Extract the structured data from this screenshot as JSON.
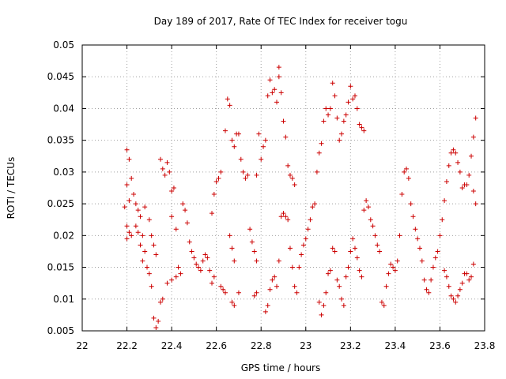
{
  "chart_data": {
    "type": "scatter",
    "title": "Day 189 of 2017, Rate Of TEC Index for receiver togu",
    "xlabel": "GPS time / hours",
    "ylabel": "ROTI / TECUs",
    "xlim": [
      22,
      23.8
    ],
    "ylim": [
      0.005,
      0.05
    ],
    "xticks": [
      "22",
      "22.2",
      "22.4",
      "22.6",
      "22.8",
      "23",
      "23.2",
      "23.4",
      "23.6",
      "23.8"
    ],
    "yticks": [
      "0.005",
      "0.01",
      "0.015",
      "0.02",
      "0.025",
      "0.03",
      "0.035",
      "0.04",
      "0.045",
      "0.05"
    ],
    "grid": true,
    "marker": "+",
    "marker_color": "#cc0000",
    "series": [
      {
        "points": [
          [
            22.2,
            0.0335
          ],
          [
            22.21,
            0.032
          ],
          [
            22.2,
            0.028
          ],
          [
            22.21,
            0.0255
          ],
          [
            22.19,
            0.0245
          ],
          [
            22.22,
            0.029
          ],
          [
            22.2,
            0.0215
          ],
          [
            22.21,
            0.0205
          ],
          [
            22.22,
            0.02
          ],
          [
            22.2,
            0.0195
          ],
          [
            22.23,
            0.0265
          ],
          [
            22.24,
            0.025
          ],
          [
            22.25,
            0.024
          ],
          [
            22.26,
            0.023
          ],
          [
            22.24,
            0.0215
          ],
          [
            22.25,
            0.0205
          ],
          [
            22.27,
            0.02
          ],
          [
            22.26,
            0.0185
          ],
          [
            22.28,
            0.0175
          ],
          [
            22.27,
            0.016
          ],
          [
            22.29,
            0.015
          ],
          [
            22.3,
            0.014
          ],
          [
            22.28,
            0.0245
          ],
          [
            22.3,
            0.0225
          ],
          [
            22.31,
            0.02
          ],
          [
            22.32,
            0.0185
          ],
          [
            22.33,
            0.017
          ],
          [
            22.31,
            0.012
          ],
          [
            22.32,
            0.007
          ],
          [
            22.33,
            0.0055
          ],
          [
            22.34,
            0.0065
          ],
          [
            22.35,
            0.0095
          ],
          [
            22.36,
            0.01
          ],
          [
            22.35,
            0.032
          ],
          [
            22.36,
            0.0305
          ],
          [
            22.37,
            0.0295
          ],
          [
            22.38,
            0.0315
          ],
          [
            22.39,
            0.03
          ],
          [
            22.4,
            0.027
          ],
          [
            22.41,
            0.0275
          ],
          [
            22.4,
            0.023
          ],
          [
            22.42,
            0.021
          ],
          [
            22.38,
            0.0125
          ],
          [
            22.4,
            0.013
          ],
          [
            22.42,
            0.0135
          ],
          [
            22.43,
            0.015
          ],
          [
            22.44,
            0.014
          ],
          [
            22.45,
            0.025
          ],
          [
            22.46,
            0.024
          ],
          [
            22.47,
            0.022
          ],
          [
            22.48,
            0.019
          ],
          [
            22.49,
            0.0175
          ],
          [
            22.5,
            0.0165
          ],
          [
            22.51,
            0.0155
          ],
          [
            22.52,
            0.015
          ],
          [
            22.53,
            0.0145
          ],
          [
            22.54,
            0.016
          ],
          [
            22.55,
            0.017
          ],
          [
            22.56,
            0.0165
          ],
          [
            22.57,
            0.0145
          ],
          [
            22.58,
            0.0125
          ],
          [
            22.59,
            0.0135
          ],
          [
            22.58,
            0.0235
          ],
          [
            22.59,
            0.0265
          ],
          [
            22.6,
            0.0285
          ],
          [
            22.61,
            0.029
          ],
          [
            22.62,
            0.03
          ],
          [
            22.62,
            0.012
          ],
          [
            22.63,
            0.0115
          ],
          [
            22.64,
            0.011
          ],
          [
            22.64,
            0.0365
          ],
          [
            22.65,
            0.0415
          ],
          [
            22.66,
            0.0405
          ],
          [
            22.67,
            0.035
          ],
          [
            22.68,
            0.034
          ],
          [
            22.69,
            0.036
          ],
          [
            22.7,
            0.036
          ],
          [
            22.66,
            0.02
          ],
          [
            22.67,
            0.018
          ],
          [
            22.68,
            0.016
          ],
          [
            22.67,
            0.0095
          ],
          [
            22.68,
            0.009
          ],
          [
            22.7,
            0.011
          ],
          [
            22.71,
            0.032
          ],
          [
            22.72,
            0.03
          ],
          [
            22.73,
            0.029
          ],
          [
            22.74,
            0.0295
          ],
          [
            22.75,
            0.021
          ],
          [
            22.76,
            0.019
          ],
          [
            22.77,
            0.0175
          ],
          [
            22.78,
            0.016
          ],
          [
            22.77,
            0.0105
          ],
          [
            22.78,
            0.011
          ],
          [
            22.78,
            0.0295
          ],
          [
            22.79,
            0.036
          ],
          [
            22.8,
            0.032
          ],
          [
            22.81,
            0.034
          ],
          [
            22.82,
            0.035
          ],
          [
            22.83,
            0.042
          ],
          [
            22.84,
            0.0445
          ],
          [
            22.85,
            0.0425
          ],
          [
            22.86,
            0.043
          ],
          [
            22.87,
            0.041
          ],
          [
            22.88,
            0.045
          ],
          [
            22.88,
            0.0465
          ],
          [
            22.89,
            0.0425
          ],
          [
            22.9,
            0.038
          ],
          [
            22.91,
            0.0355
          ],
          [
            22.92,
            0.031
          ],
          [
            22.93,
            0.0295
          ],
          [
            22.94,
            0.029
          ],
          [
            22.95,
            0.028
          ],
          [
            22.82,
            0.008
          ],
          [
            22.83,
            0.009
          ],
          [
            22.84,
            0.0115
          ],
          [
            22.85,
            0.013
          ],
          [
            22.86,
            0.0135
          ],
          [
            22.87,
            0.012
          ],
          [
            22.88,
            0.016
          ],
          [
            22.89,
            0.023
          ],
          [
            22.9,
            0.0235
          ],
          [
            22.91,
            0.023
          ],
          [
            22.92,
            0.0225
          ],
          [
            22.93,
            0.018
          ],
          [
            22.94,
            0.015
          ],
          [
            22.95,
            0.012
          ],
          [
            22.96,
            0.011
          ],
          [
            22.97,
            0.015
          ],
          [
            22.98,
            0.017
          ],
          [
            22.99,
            0.0185
          ],
          [
            23.0,
            0.0195
          ],
          [
            23.01,
            0.021
          ],
          [
            23.02,
            0.0225
          ],
          [
            23.03,
            0.0245
          ],
          [
            23.04,
            0.025
          ],
          [
            23.05,
            0.03
          ],
          [
            23.06,
            0.033
          ],
          [
            23.07,
            0.0345
          ],
          [
            23.08,
            0.038
          ],
          [
            23.09,
            0.04
          ],
          [
            23.1,
            0.039
          ],
          [
            23.11,
            0.04
          ],
          [
            23.12,
            0.044
          ],
          [
            23.13,
            0.042
          ],
          [
            23.14,
            0.0385
          ],
          [
            23.15,
            0.035
          ],
          [
            23.16,
            0.036
          ],
          [
            23.17,
            0.038
          ],
          [
            23.18,
            0.039
          ],
          [
            23.19,
            0.041
          ],
          [
            23.2,
            0.0435
          ],
          [
            23.21,
            0.0415
          ],
          [
            23.22,
            0.042
          ],
          [
            23.23,
            0.04
          ],
          [
            23.24,
            0.0375
          ],
          [
            23.25,
            0.037
          ],
          [
            23.26,
            0.0365
          ],
          [
            23.06,
            0.0095
          ],
          [
            23.07,
            0.0075
          ],
          [
            23.08,
            0.009
          ],
          [
            23.09,
            0.011
          ],
          [
            23.1,
            0.014
          ],
          [
            23.11,
            0.0145
          ],
          [
            23.12,
            0.018
          ],
          [
            23.13,
            0.0175
          ],
          [
            23.14,
            0.013
          ],
          [
            23.15,
            0.012
          ],
          [
            23.16,
            0.01
          ],
          [
            23.17,
            0.009
          ],
          [
            23.18,
            0.0135
          ],
          [
            23.19,
            0.015
          ],
          [
            23.2,
            0.0175
          ],
          [
            23.21,
            0.0195
          ],
          [
            23.22,
            0.018
          ],
          [
            23.23,
            0.0165
          ],
          [
            23.24,
            0.0145
          ],
          [
            23.25,
            0.0135
          ],
          [
            23.26,
            0.024
          ],
          [
            23.27,
            0.0255
          ],
          [
            23.28,
            0.0245
          ],
          [
            23.29,
            0.0225
          ],
          [
            23.3,
            0.0215
          ],
          [
            23.31,
            0.02
          ],
          [
            23.32,
            0.0185
          ],
          [
            23.33,
            0.0175
          ],
          [
            23.34,
            0.0095
          ],
          [
            23.35,
            0.009
          ],
          [
            23.36,
            0.012
          ],
          [
            23.37,
            0.014
          ],
          [
            23.38,
            0.0155
          ],
          [
            23.39,
            0.015
          ],
          [
            23.4,
            0.0145
          ],
          [
            23.41,
            0.016
          ],
          [
            23.42,
            0.02
          ],
          [
            23.43,
            0.0265
          ],
          [
            23.44,
            0.03
          ],
          [
            23.45,
            0.0305
          ],
          [
            23.46,
            0.029
          ],
          [
            23.47,
            0.025
          ],
          [
            23.48,
            0.023
          ],
          [
            23.49,
            0.021
          ],
          [
            23.5,
            0.0195
          ],
          [
            23.51,
            0.018
          ],
          [
            23.52,
            0.016
          ],
          [
            23.53,
            0.013
          ],
          [
            23.54,
            0.0115
          ],
          [
            23.55,
            0.011
          ],
          [
            23.56,
            0.013
          ],
          [
            23.57,
            0.015
          ],
          [
            23.58,
            0.0165
          ],
          [
            23.59,
            0.0175
          ],
          [
            23.6,
            0.02
          ],
          [
            23.61,
            0.0225
          ],
          [
            23.62,
            0.0255
          ],
          [
            23.63,
            0.0285
          ],
          [
            23.64,
            0.031
          ],
          [
            23.65,
            0.033
          ],
          [
            23.66,
            0.0335
          ],
          [
            23.67,
            0.033
          ],
          [
            23.68,
            0.0315
          ],
          [
            23.69,
            0.03
          ],
          [
            23.7,
            0.0275
          ],
          [
            23.71,
            0.028
          ],
          [
            23.72,
            0.028
          ],
          [
            23.73,
            0.0295
          ],
          [
            23.74,
            0.0325
          ],
          [
            23.75,
            0.0355
          ],
          [
            23.76,
            0.0385
          ],
          [
            23.75,
            0.027
          ],
          [
            23.76,
            0.025
          ],
          [
            23.62,
            0.0145
          ],
          [
            23.63,
            0.0135
          ],
          [
            23.64,
            0.012
          ],
          [
            23.65,
            0.0105
          ],
          [
            23.66,
            0.01
          ],
          [
            23.67,
            0.0095
          ],
          [
            23.68,
            0.0105
          ],
          [
            23.69,
            0.0115
          ],
          [
            23.7,
            0.0125
          ],
          [
            23.71,
            0.014
          ],
          [
            23.72,
            0.014
          ],
          [
            23.73,
            0.013
          ],
          [
            23.74,
            0.0135
          ],
          [
            23.75,
            0.0155
          ]
        ]
      }
    ]
  }
}
